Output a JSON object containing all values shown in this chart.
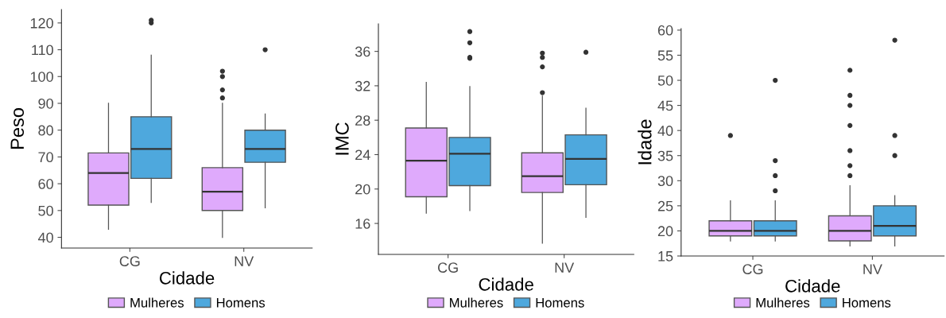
{
  "chart_data": [
    {
      "type": "box",
      "xlabel": "Cidade",
      "ylabel": "Peso",
      "categories": [
        "CG",
        "NV"
      ],
      "ylim": [
        36,
        125
      ],
      "yticks": [
        40,
        50,
        60,
        70,
        80,
        90,
        100,
        110,
        120
      ],
      "legend": "bottom",
      "grid": false,
      "series": [
        {
          "name": "Mulheres",
          "color": "#dfaafc",
          "boxes": [
            {
              "low": 43,
              "q1": 52,
              "median": 64,
              "q3": 71.5,
              "high": 90
            },
            {
              "low": 40,
              "q1": 50,
              "median": 57,
              "q3": 66,
              "high": 90,
              "outliers": [
                92,
                95,
                100,
                102
              ]
            }
          ]
        },
        {
          "name": "Homens",
          "color": "#4ea8dd",
          "boxes": [
            {
              "low": 53,
              "q1": 62,
              "median": 73,
              "q3": 85,
              "high": 108,
              "outliers": [
                120,
                121
              ]
            },
            {
              "low": 51,
              "q1": 68,
              "median": 73,
              "q3": 80,
              "high": 86,
              "outliers": [
                110
              ]
            }
          ]
        }
      ]
    },
    {
      "type": "box",
      "xlabel": "Cidade",
      "ylabel": "IMC",
      "categories": [
        "CG",
        "NV"
      ],
      "ylim": [
        12.4,
        39.2
      ],
      "yticks": [
        16,
        20,
        24,
        28,
        32,
        36
      ],
      "legend": "bottom",
      "grid": false,
      "series": [
        {
          "name": "Mulheres",
          "color": "#dfaafc",
          "boxes": [
            {
              "low": 17.2,
              "q1": 19.1,
              "median": 23.3,
              "q3": 27.1,
              "high": 32.4
            },
            {
              "low": 13.7,
              "q1": 19.6,
              "median": 21.5,
              "q3": 24.2,
              "high": 30.8,
              "outliers": [
                31.2,
                34.2,
                35.3,
                35.8
              ]
            }
          ]
        },
        {
          "name": "Homens",
          "color": "#4ea8dd",
          "boxes": [
            {
              "low": 17.5,
              "q1": 20.4,
              "median": 24.1,
              "q3": 26.0,
              "high": 31.9,
              "outliers": [
                35.2,
                35.3,
                37.0,
                38.3
              ]
            },
            {
              "low": 16.7,
              "q1": 20.5,
              "median": 23.5,
              "q3": 26.3,
              "high": 29.4,
              "outliers": [
                35.9
              ]
            }
          ]
        }
      ]
    },
    {
      "type": "box",
      "xlabel": "Cidade",
      "ylabel": "Idade",
      "categories": [
        "CG",
        "NV"
      ],
      "ylim": [
        15,
        60.3
      ],
      "yticks": [
        15,
        20,
        25,
        30,
        35,
        40,
        45,
        50,
        55,
        60
      ],
      "legend": "bottom",
      "grid": false,
      "series": [
        {
          "name": "Mulheres",
          "color": "#dfaafc",
          "boxes": [
            {
              "low": 18,
              "q1": 19,
              "median": 20,
              "q3": 22,
              "high": 26,
              "outliers": [
                39
              ]
            },
            {
              "low": 17,
              "q1": 18,
              "median": 20,
              "q3": 23,
              "high": 29,
              "outliers": [
                31,
                33,
                36,
                41,
                45,
                47,
                52
              ]
            }
          ]
        },
        {
          "name": "Homens",
          "color": "#4ea8dd",
          "boxes": [
            {
              "low": 18,
              "q1": 19,
              "median": 20,
              "q3": 22,
              "high": 26,
              "outliers": [
                28,
                31,
                34,
                50
              ]
            },
            {
              "low": 17,
              "q1": 19,
              "median": 21,
              "q3": 25,
              "high": 27,
              "outliers": [
                35,
                39,
                58
              ]
            }
          ]
        }
      ]
    }
  ]
}
